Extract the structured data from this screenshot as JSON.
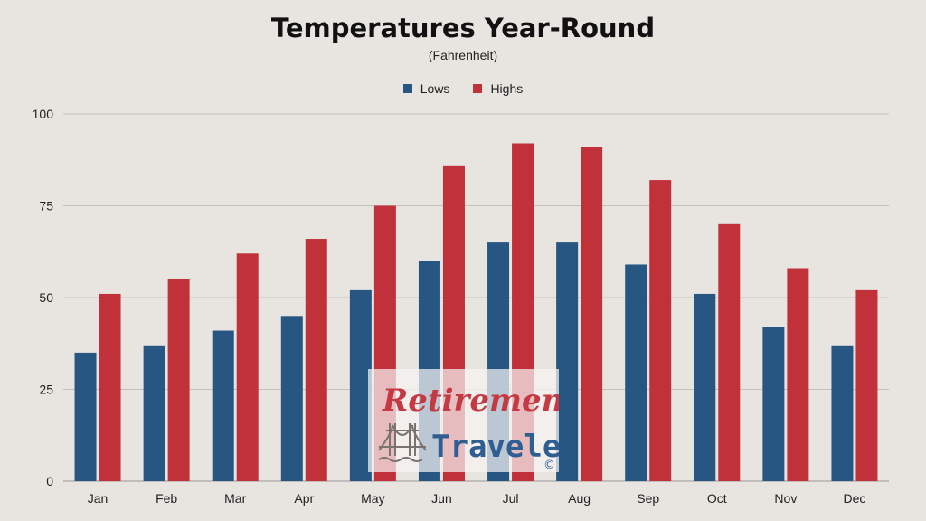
{
  "chart_data": {
    "type": "bar",
    "title": "Temperatures Year-Round",
    "subtitle": "(Fahrenheit)",
    "categories": [
      "Jan",
      "Feb",
      "Mar",
      "Apr",
      "May",
      "Jun",
      "Jul",
      "Aug",
      "Sep",
      "Oct",
      "Nov",
      "Dec"
    ],
    "series": [
      {
        "name": "Lows",
        "color": "#275682",
        "values": [
          35,
          37,
          41,
          45,
          52,
          60,
          65,
          65,
          59,
          51,
          42,
          37
        ]
      },
      {
        "name": "Highs",
        "color": "#c0313a",
        "values": [
          51,
          55,
          62,
          66,
          75,
          86,
          92,
          91,
          82,
          70,
          58,
          52
        ]
      }
    ],
    "ylim": [
      0,
      100
    ],
    "yticks": [
      0,
      25,
      50,
      75,
      100
    ],
    "grid": true,
    "legend_position": "top-center"
  },
  "watermark": {
    "line1": "Retirement",
    "line2": "Travelers",
    "symbol": "©",
    "icon": "golden-gate-bridge-icon"
  }
}
